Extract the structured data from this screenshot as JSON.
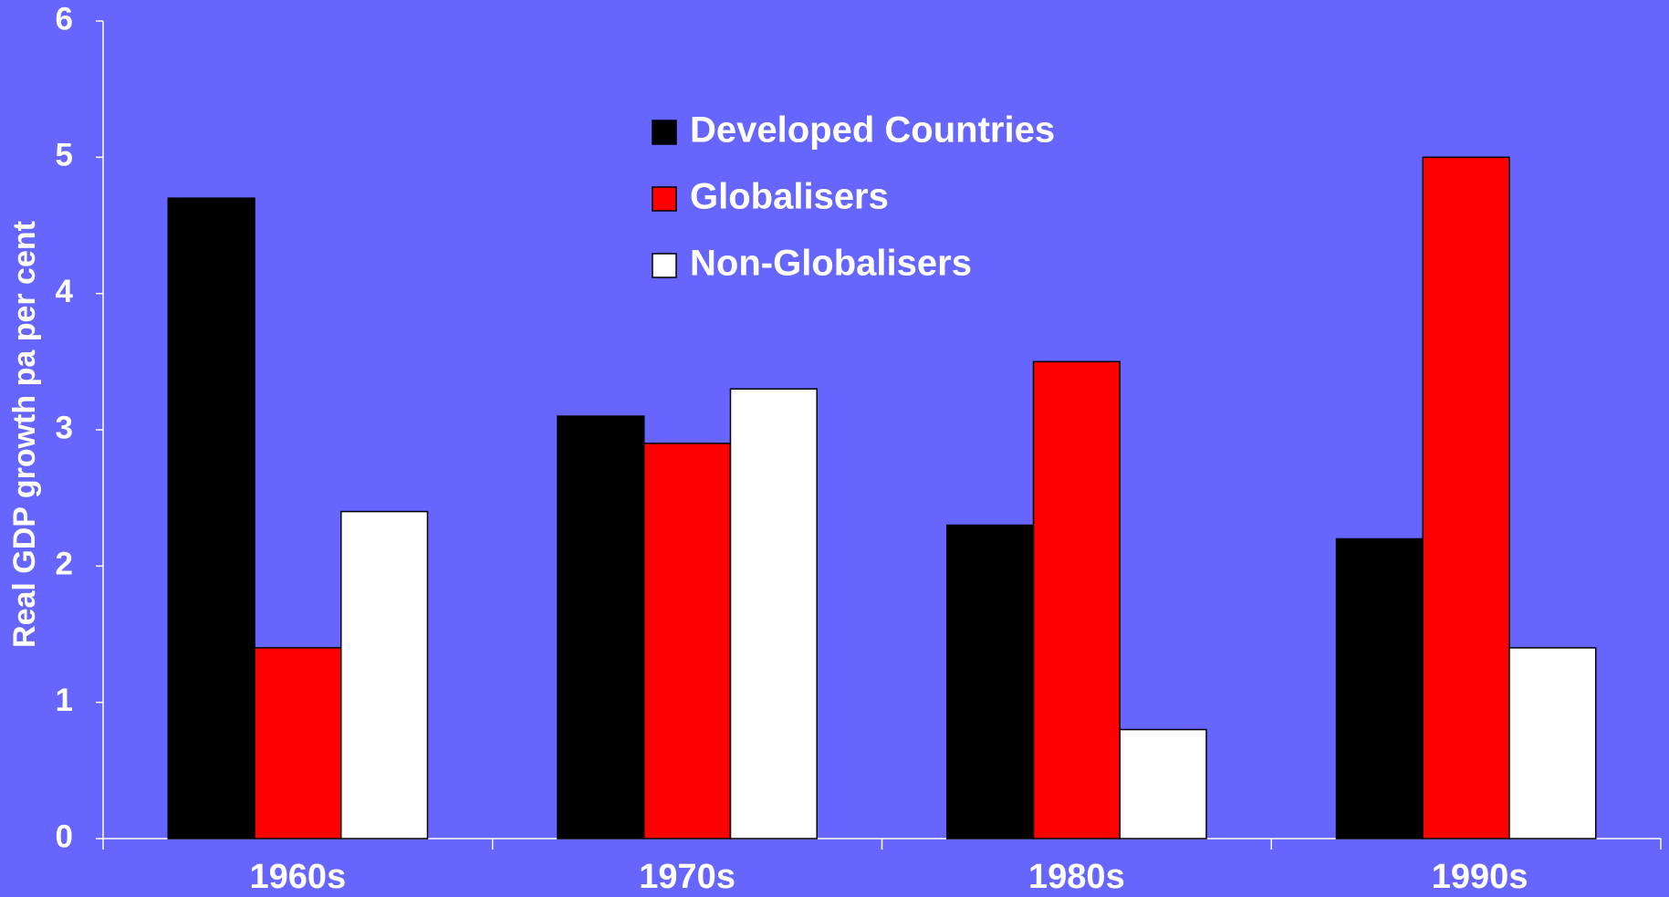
{
  "chart_data": {
    "type": "bar",
    "categories": [
      "1960s",
      "1970s",
      "1980s",
      "1990s"
    ],
    "series": [
      {
        "name": "Developed Countries",
        "color": "#000000",
        "values": [
          4.7,
          3.1,
          2.3,
          2.2
        ]
      },
      {
        "name": "Globalisers",
        "color": "#ff0000",
        "values": [
          1.4,
          2.9,
          3.5,
          5.0
        ]
      },
      {
        "name": "Non-Globalisers",
        "color": "#ffffff",
        "values": [
          2.4,
          3.3,
          0.8,
          1.4
        ]
      }
    ],
    "y_label": "Real GDP growth pa per cent",
    "ylim": [
      0,
      6
    ],
    "yticks": [
      0,
      1,
      2,
      3,
      4,
      5,
      6
    ],
    "grid": false,
    "legend": "top"
  }
}
